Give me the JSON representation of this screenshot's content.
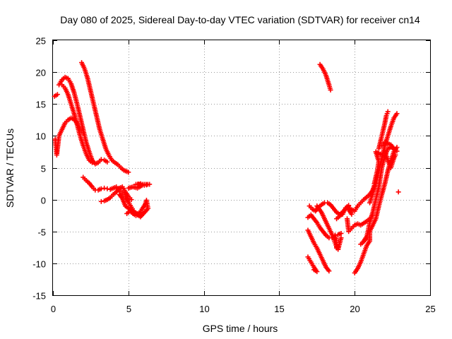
{
  "chart_data": {
    "type": "scatter",
    "title": "Day 080 of 2025, Sidereal Day-to-day VTEC variation (SDTVAR) for receiver cn14",
    "xlabel": "GPS time / hours",
    "ylabel": "SDTVAR / TECUs",
    "xlim": [
      0,
      25
    ],
    "ylim": [
      -15,
      25
    ],
    "xticks": [
      0,
      5,
      10,
      15,
      20,
      25
    ],
    "yticks": [
      -15,
      -10,
      -5,
      0,
      5,
      10,
      15,
      20,
      25
    ],
    "xtick_labels": [
      "0",
      "5",
      "10",
      "15",
      "20",
      "25"
    ],
    "ytick_labels": [
      "-15",
      "-10",
      "-5",
      "0",
      "5",
      "10",
      "15",
      "20",
      "25"
    ],
    "grid": true,
    "marker": "+",
    "color": "#ff0000",
    "series": [
      {
        "points": [
          [
            0.1,
            16.2
          ],
          [
            0.3,
            16.5
          ],
          [
            0.15,
            9.5
          ],
          [
            0.2,
            8.2
          ],
          [
            0.25,
            7.0
          ],
          [
            0.4,
            10.0
          ],
          [
            0.6,
            11.0
          ],
          [
            0.8,
            12.0
          ],
          [
            1.0,
            12.5
          ],
          [
            1.2,
            12.8
          ],
          [
            1.4,
            12.6
          ],
          [
            1.6,
            12.0
          ],
          [
            1.8,
            11.0
          ],
          [
            2.0,
            10.5
          ]
        ]
      },
      {
        "points": [
          [
            0.4,
            18.0
          ],
          [
            0.6,
            18.8
          ],
          [
            0.8,
            19.2
          ],
          [
            1.0,
            19.0
          ],
          [
            1.2,
            18.2
          ],
          [
            1.4,
            16.8
          ],
          [
            1.6,
            15.0
          ],
          [
            1.8,
            13.0
          ],
          [
            2.0,
            11.0
          ],
          [
            2.2,
            9.0
          ],
          [
            2.4,
            7.5
          ],
          [
            2.6,
            6.2
          ],
          [
            2.8,
            5.6
          ],
          [
            3.0,
            5.8
          ],
          [
            3.2,
            6.3
          ],
          [
            3.4,
            6.2
          ],
          [
            3.6,
            5.9
          ]
        ]
      },
      {
        "points": [
          [
            0.6,
            18.0
          ],
          [
            0.8,
            17.5
          ],
          [
            1.0,
            16.5
          ],
          [
            1.2,
            15.0
          ],
          [
            1.4,
            13.5
          ],
          [
            1.6,
            11.8
          ],
          [
            1.8,
            10.0
          ],
          [
            2.0,
            8.5
          ],
          [
            2.2,
            7.2
          ],
          [
            2.4,
            6.2
          ],
          [
            2.6,
            5.8
          ]
        ]
      },
      {
        "points": [
          [
            1.9,
            21.5
          ],
          [
            2.1,
            20.5
          ],
          [
            2.3,
            19.0
          ],
          [
            2.5,
            17.0
          ],
          [
            2.7,
            15.0
          ],
          [
            2.9,
            13.0
          ],
          [
            3.1,
            11.0
          ],
          [
            3.3,
            9.5
          ],
          [
            3.5,
            8.0
          ],
          [
            3.7,
            7.0
          ],
          [
            3.9,
            6.2
          ],
          [
            4.1,
            5.8
          ],
          [
            4.3,
            5.5
          ],
          [
            4.5,
            5.0
          ],
          [
            4.7,
            4.6
          ],
          [
            4.9,
            4.4
          ],
          [
            5.0,
            4.3
          ]
        ]
      },
      {
        "points": [
          [
            2.0,
            3.5
          ],
          [
            2.2,
            3.0
          ],
          [
            2.4,
            2.6
          ],
          [
            2.6,
            2.0
          ],
          [
            2.8,
            1.5
          ],
          [
            3.0,
            1.5
          ],
          [
            3.2,
            1.7
          ],
          [
            3.4,
            1.8
          ],
          [
            3.6,
            1.7
          ],
          [
            3.8,
            1.6
          ],
          [
            4.0,
            1.8
          ],
          [
            4.2,
            2.0
          ],
          [
            4.4,
            1.5
          ],
          [
            4.6,
            1.0
          ],
          [
            4.8,
            0.5
          ],
          [
            5.0,
            -0.4
          ],
          [
            5.2,
            -1.2
          ],
          [
            5.4,
            -2.0
          ],
          [
            5.6,
            -2.2
          ],
          [
            5.8,
            -2.0
          ]
        ]
      },
      {
        "points": [
          [
            3.2,
            -0.3
          ],
          [
            3.4,
            -0.2
          ],
          [
            3.6,
            0.0
          ],
          [
            3.8,
            0.3
          ],
          [
            4.0,
            0.8
          ],
          [
            4.2,
            1.2
          ],
          [
            4.4,
            1.8
          ],
          [
            4.6,
            2.0
          ],
          [
            4.8,
            1.2
          ],
          [
            5.0,
            0.5
          ],
          [
            5.2,
            0.0
          ]
        ]
      },
      {
        "points": [
          [
            5.0,
            1.8
          ],
          [
            5.3,
            2.0
          ],
          [
            5.6,
            1.8
          ],
          [
            5.9,
            2.2
          ],
          [
            6.2,
            2.3
          ],
          [
            6.4,
            2.4
          ],
          [
            5.5,
            2.4
          ],
          [
            5.8,
            2.5
          ]
        ]
      },
      {
        "points": [
          [
            4.9,
            -2.2
          ],
          [
            5.1,
            -1.8
          ],
          [
            5.3,
            -2.2
          ],
          [
            5.5,
            -2.5
          ],
          [
            5.7,
            -2.3
          ],
          [
            5.9,
            -1.5
          ],
          [
            6.1,
            -0.8
          ],
          [
            6.2,
            -0.1
          ],
          [
            6.3,
            -1.4
          ],
          [
            5.8,
            -2.7
          ],
          [
            4.8,
            -1.0
          ],
          [
            4.6,
            0.2
          ],
          [
            4.4,
            0.8
          ]
        ]
      },
      {
        "points": [
          [
            17.7,
            21.2
          ],
          [
            17.9,
            20.5
          ],
          [
            18.1,
            19.5
          ],
          [
            18.3,
            18.0
          ],
          [
            18.4,
            17.2
          ]
        ]
      },
      {
        "points": [
          [
            17.0,
            -1.0
          ],
          [
            17.2,
            -1.5
          ],
          [
            17.4,
            -1.8
          ],
          [
            17.6,
            -1.2
          ],
          [
            17.8,
            -0.8
          ],
          [
            18.0,
            -0.5
          ],
          [
            18.2,
            -0.5
          ],
          [
            18.4,
            -0.8
          ],
          [
            18.6,
            -1.4
          ],
          [
            18.8,
            -2.0
          ],
          [
            19.0,
            -2.3
          ],
          [
            19.2,
            -2.0
          ],
          [
            19.4,
            -1.4
          ],
          [
            19.6,
            -1.0
          ]
        ]
      },
      {
        "points": [
          [
            16.9,
            -2.8
          ],
          [
            17.1,
            -2.4
          ],
          [
            17.3,
            -3.0
          ],
          [
            17.5,
            -3.6
          ],
          [
            17.7,
            -4.4
          ],
          [
            17.9,
            -5.0
          ],
          [
            18.1,
            -5.6
          ],
          [
            18.3,
            -6.0
          ],
          [
            18.5,
            -6.0
          ],
          [
            18.7,
            -5.6
          ],
          [
            18.9,
            -5.5
          ],
          [
            19.1,
            -5.3
          ]
        ]
      },
      {
        "points": [
          [
            17.5,
            -1.0
          ],
          [
            17.8,
            -2.0
          ],
          [
            18.0,
            -3.0
          ],
          [
            18.2,
            -4.0
          ],
          [
            18.4,
            -5.0
          ],
          [
            18.6,
            -6.0
          ],
          [
            18.7,
            -6.8
          ],
          [
            18.8,
            -7.4
          ],
          [
            18.9,
            -7.8
          ]
        ]
      },
      {
        "points": [
          [
            16.9,
            -4.8
          ],
          [
            17.1,
            -5.8
          ],
          [
            17.3,
            -6.8
          ],
          [
            17.5,
            -7.6
          ],
          [
            17.7,
            -8.6
          ],
          [
            17.9,
            -9.6
          ],
          [
            18.1,
            -10.6
          ],
          [
            18.3,
            -11.2
          ]
        ]
      },
      {
        "points": [
          [
            16.9,
            -9.0
          ],
          [
            17.1,
            -9.8
          ],
          [
            17.3,
            -10.6
          ],
          [
            17.5,
            -11.3
          ],
          [
            17.3,
            -11.0
          ]
        ]
      },
      {
        "points": [
          [
            18.7,
            -5.6
          ],
          [
            18.8,
            -6.4
          ],
          [
            18.8,
            -7.6
          ],
          [
            18.9,
            -7.8
          ],
          [
            19.1,
            -6.0
          ]
        ]
      },
      {
        "points": [
          [
            19.5,
            -3.0
          ],
          [
            19.6,
            -5.0
          ],
          [
            19.8,
            -4.5
          ],
          [
            20.0,
            -4.0
          ],
          [
            20.2,
            -3.8
          ],
          [
            20.4,
            -4.0
          ],
          [
            20.6,
            -3.7
          ],
          [
            20.8,
            -3.4
          ],
          [
            21.0,
            -3.0
          ],
          [
            21.2,
            -2.5
          ]
        ]
      },
      {
        "points": [
          [
            19.8,
            -2.3
          ],
          [
            19.5,
            -1.2
          ],
          [
            20.0,
            -1.8
          ],
          [
            20.2,
            -1.0
          ],
          [
            20.4,
            -0.5
          ],
          [
            20.6,
            0.0
          ],
          [
            20.8,
            0.4
          ],
          [
            21.0,
            0.8
          ],
          [
            21.2,
            1.5
          ],
          [
            21.3,
            2.2
          ]
        ]
      },
      {
        "points": [
          [
            20.0,
            -11.5
          ],
          [
            20.2,
            -10.8
          ],
          [
            20.4,
            -9.8
          ],
          [
            20.6,
            -8.5
          ],
          [
            20.8,
            -7.2
          ],
          [
            21.0,
            -6.5
          ],
          [
            21.0,
            -5.0
          ],
          [
            21.2,
            -4.0
          ],
          [
            21.4,
            -3.0
          ],
          [
            21.6,
            -1.0
          ],
          [
            21.8,
            0.8
          ],
          [
            22.0,
            2.5
          ],
          [
            22.2,
            4.5
          ],
          [
            22.4,
            6.2
          ],
          [
            22.6,
            7.5
          ],
          [
            22.8,
            8.2
          ]
        ]
      },
      {
        "points": [
          [
            20.6,
            -6.5
          ],
          [
            20.8,
            -5.8
          ],
          [
            20.9,
            -4.8
          ],
          [
            21.0,
            -3.5
          ],
          [
            21.2,
            -2.0
          ],
          [
            21.4,
            0.0
          ],
          [
            21.6,
            2.0
          ],
          [
            21.7,
            3.5
          ],
          [
            21.8,
            5.0
          ],
          [
            22.0,
            6.8
          ],
          [
            22.2,
            8.0
          ],
          [
            22.4,
            8.2
          ],
          [
            22.6,
            8.0
          ]
        ]
      },
      {
        "points": [
          [
            21.0,
            -0.5
          ],
          [
            21.2,
            1.0
          ],
          [
            21.4,
            2.5
          ],
          [
            21.6,
            4.5
          ],
          [
            21.8,
            6.5
          ],
          [
            22.0,
            8.5
          ],
          [
            22.2,
            10.0
          ],
          [
            22.4,
            11.5
          ],
          [
            22.6,
            12.8
          ],
          [
            22.8,
            13.5
          ]
        ]
      },
      {
        "points": [
          [
            21.6,
            8.0
          ],
          [
            21.8,
            10.0
          ],
          [
            22.0,
            12.0
          ],
          [
            22.1,
            13.2
          ],
          [
            22.2,
            13.8
          ]
        ]
      },
      {
        "points": [
          [
            21.8,
            8.5
          ],
          [
            22.0,
            9.0
          ],
          [
            22.2,
            8.8
          ],
          [
            22.4,
            8.6
          ],
          [
            22.6,
            8.0
          ],
          [
            22.8,
            7.6
          ]
        ]
      },
      {
        "points": [
          [
            21.3,
            2.5
          ],
          [
            21.5,
            4.5
          ],
          [
            21.6,
            6.0
          ],
          [
            21.4,
            7.5
          ],
          [
            21.8,
            7.0
          ],
          [
            22.0,
            7.5
          ],
          [
            22.2,
            6.2
          ],
          [
            22.3,
            5.5
          ],
          [
            22.4,
            5.0
          ],
          [
            22.6,
            6.5
          ],
          [
            22.7,
            7.0
          ]
        ]
      },
      {
        "points": [
          [
            18.8,
            -3.0
          ],
          [
            19.0,
            -2.6
          ],
          [
            19.1,
            -2.4
          ],
          [
            18.9,
            -7.4
          ],
          [
            19.2,
            -2.3
          ],
          [
            19.4,
            -1.3
          ],
          [
            19.6,
            -0.9
          ]
        ]
      },
      {
        "points": [
          [
            20.4,
            -7.0
          ],
          [
            20.6,
            -6.6
          ],
          [
            20.8,
            -6.0
          ],
          [
            22.9,
            1.2
          ]
        ]
      }
    ]
  }
}
